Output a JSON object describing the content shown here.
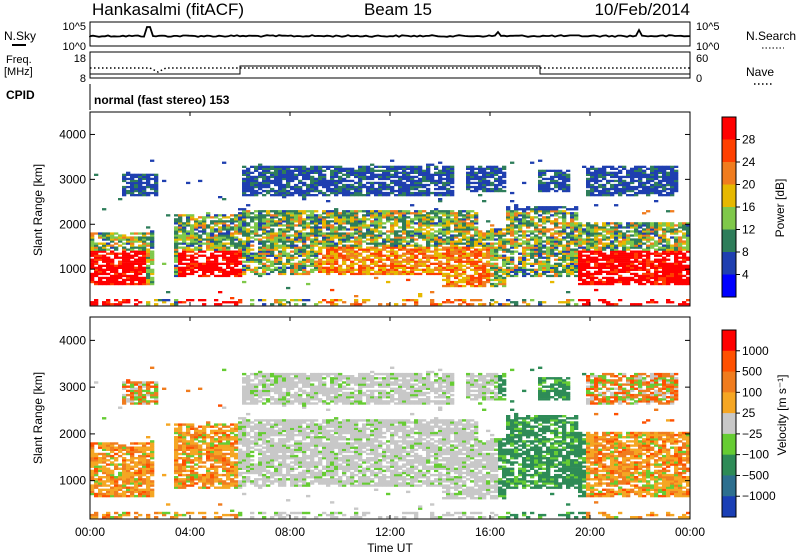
{
  "header": {
    "station": "Hankasalmi (fitACF)",
    "beam": "Beam 15",
    "date": "10/Feb/2014"
  },
  "noise_panel": {
    "left_label": "N.Sky",
    "right_label": "N.Search",
    "left_ticks": [
      "10^5",
      "10^0"
    ],
    "right_ticks": [
      "10^5",
      "10^0"
    ]
  },
  "freq_panel": {
    "left_label_1": "Freq.",
    "left_label_2": "[MHz]",
    "right_label": "Nave",
    "left_ticks": [
      "18",
      "8"
    ],
    "right_ticks": [
      "60",
      "0"
    ]
  },
  "cpid": {
    "label": "CPID",
    "text": "normal (fast stereo) 153"
  },
  "chart_data": [
    {
      "type": "heatmap",
      "name": "power",
      "ylabel": "Slant Range [km]",
      "xlabel": "Time UT",
      "x_ticks": [
        "00:00",
        "04:00",
        "08:00",
        "12:00",
        "16:00",
        "20:00",
        "00:00"
      ],
      "x_range_hours": [
        0,
        24
      ],
      "y_ticks": [
        1000,
        2000,
        3000,
        4000
      ],
      "ylim": [
        180,
        4500
      ],
      "colorbar_label": "Power [dB]",
      "colorbar_ticks": [
        4,
        8,
        12,
        16,
        20,
        24,
        28
      ],
      "colorbar_range": [
        0,
        32
      ],
      "colors": [
        "#0000ff",
        "#1f3fb0",
        "#2e7d5a",
        "#7fc84a",
        "#e6b800",
        "#f07c1e",
        "#ff4000",
        "#ff0000"
      ]
    },
    {
      "type": "heatmap",
      "name": "velocity",
      "ylabel": "Slant Range [km]",
      "xlabel": "Time UT",
      "x_ticks": [
        "00:00",
        "04:00",
        "08:00",
        "12:00",
        "16:00",
        "20:00",
        "00:00"
      ],
      "x_range_hours": [
        0,
        24
      ],
      "y_ticks": [
        1000,
        2000,
        3000,
        4000
      ],
      "ylim": [
        180,
        4500
      ],
      "colorbar_label": "Velocity [m s⁻¹]",
      "colorbar_ticks": [
        "1000",
        "500",
        "100",
        "25",
        "−25",
        "−100",
        "−500",
        "−1000"
      ],
      "colors": [
        "#1a3fb5",
        "#2d6f8f",
        "#2e8b57",
        "#66cc33",
        "#c8c8c8",
        "#f5a623",
        "#f07c1e",
        "#ff5000",
        "#ff0000"
      ]
    }
  ]
}
